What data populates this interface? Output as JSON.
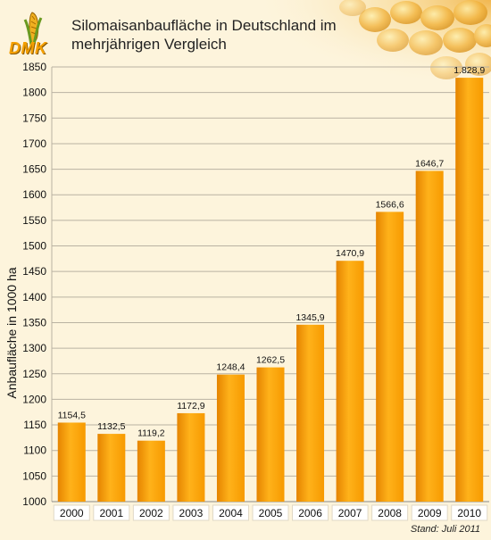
{
  "title_lines": [
    "Silomaisanbaufläche in Deutschland im",
    "mehrjährigen Vergleich"
  ],
  "logo_text": "DMK",
  "source": "Stand: Juli 2011",
  "colors": {
    "bar": "#f79a00",
    "bar_dark": "#e58400",
    "bar_light": "#ffb21a",
    "grid": "#b9b2a2",
    "background": "#fdf4dc"
  },
  "chart_data": {
    "type": "bar",
    "ylabel": "Anbaufläche in 1000 ha",
    "xlabel": "",
    "ylim": [
      1000,
      1850
    ],
    "yticks": [
      1000,
      1050,
      1100,
      1150,
      1200,
      1250,
      1300,
      1350,
      1400,
      1450,
      1500,
      1550,
      1600,
      1650,
      1700,
      1750,
      1800,
      1850
    ],
    "grid": true,
    "categories": [
      "2000",
      "2001",
      "2002",
      "2003",
      "2004",
      "2005",
      "2006",
      "2007",
      "2008",
      "2009",
      "2010"
    ],
    "values": [
      1154.5,
      1132.5,
      1119.2,
      1172.9,
      1248.4,
      1262.5,
      1345.9,
      1470.9,
      1566.6,
      1646.7,
      1828.9
    ],
    "value_labels": [
      "1154,5",
      "1132,5",
      "1119,2",
      "1172,9",
      "1248,4",
      "1262,5",
      "1345,9",
      "1470,9",
      "1566,6",
      "1646,7",
      "1.828,9"
    ]
  }
}
